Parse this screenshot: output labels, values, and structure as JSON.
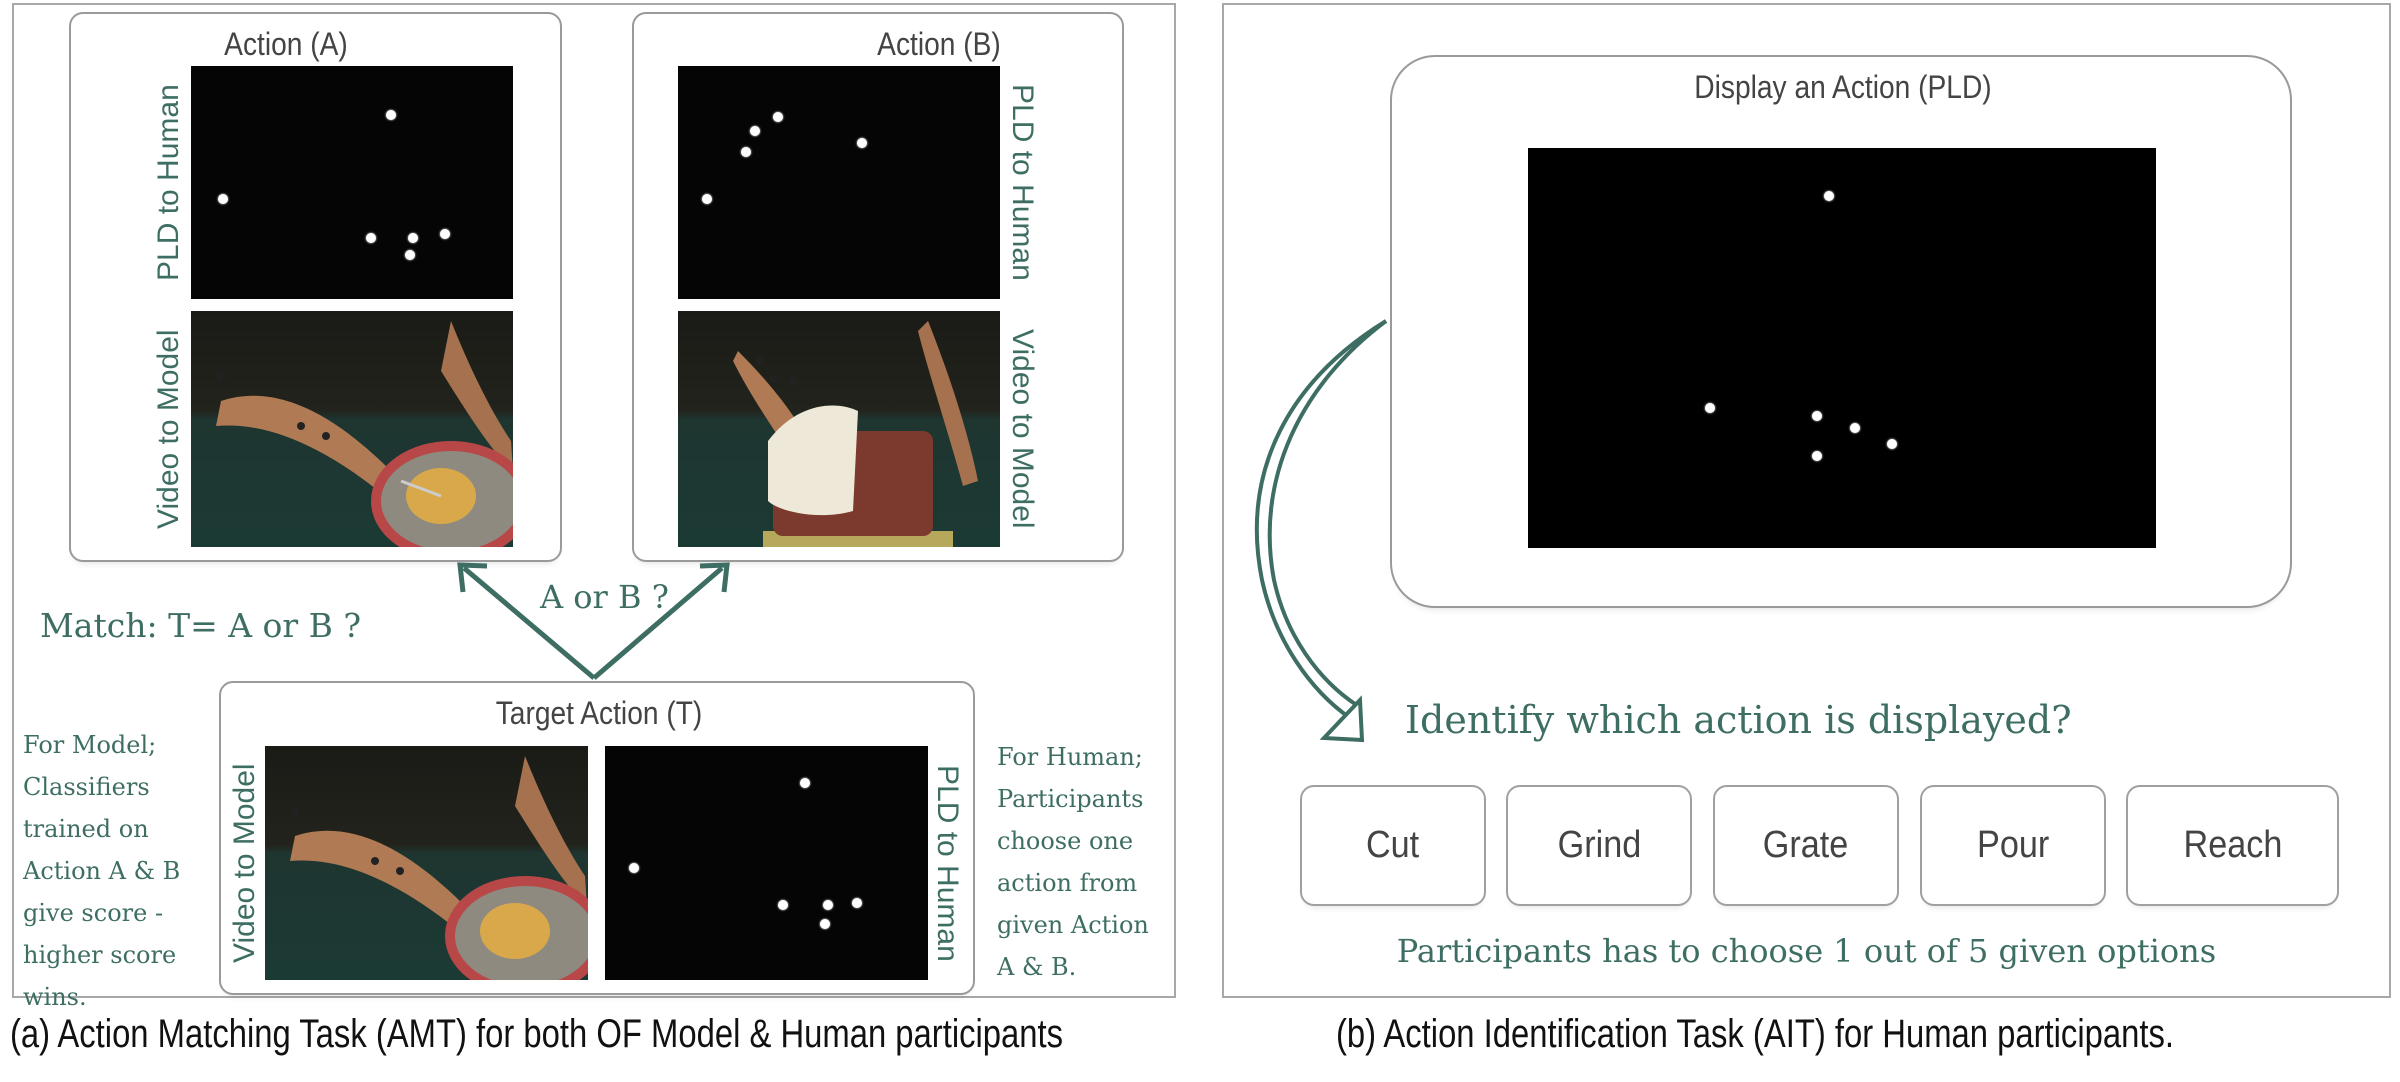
{
  "panel_a": {
    "action_a": {
      "title": "Action (A)",
      "pld_label": "PLD to Human",
      "video_label": "Video to Model"
    },
    "action_b": {
      "title": "Action (B)",
      "pld_label": "PLD to Human",
      "video_label": "Video to Model"
    },
    "arrow_label": "A or B ?",
    "match_label": "Match: T= A or B ?",
    "target": {
      "title": "Target Action (T)",
      "video_label": "Video to Model",
      "pld_label": "PLD to Human"
    },
    "model_note": [
      "For Model;",
      "Classifiers",
      "trained on",
      "Action A & B",
      "give score -",
      "higher score",
      "wins."
    ],
    "human_note": [
      "For Human;",
      "Participants",
      "choose one",
      "action from",
      "given Action",
      "A & B."
    ],
    "caption": "(a) Action Matching Task (AMT) for both OF Model & Human participants"
  },
  "panel_b": {
    "display_title": "Display an Action (PLD)",
    "question": "Identify which action is displayed?",
    "options": [
      "Cut",
      "Grind",
      "Grate",
      "Pour",
      "Reach"
    ],
    "footer": "Participants has to choose 1 out of 5 given options",
    "caption": "(b) Action Identification Task (AIT) for Human participants."
  },
  "colors": {
    "accent": "#3e6e63",
    "border": "#9a9a9a",
    "pld_background": "#050505"
  }
}
